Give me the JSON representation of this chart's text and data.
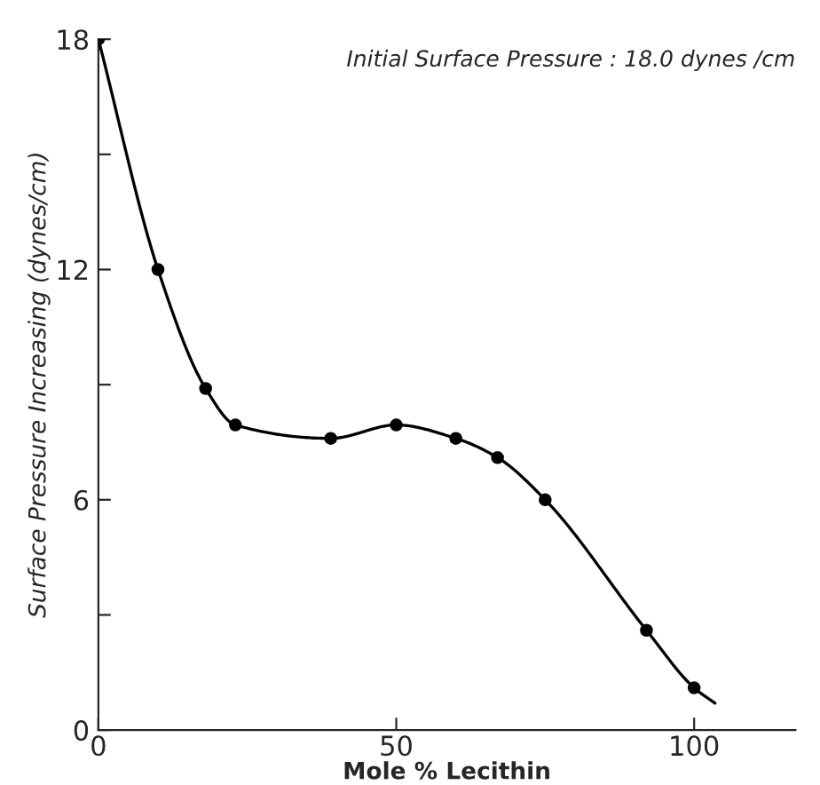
{
  "chart_data": {
    "type": "scatter",
    "xlabel": "Mole % Lecithin",
    "ylabel": "Surface Pressure Increasing (dynes/cm)",
    "annotations": [
      "Initial Surface Pressure : 18.0 dynes /cm"
    ],
    "series": [
      {
        "color": "#000000",
        "marker": "circle",
        "x": [
          0,
          10,
          18,
          23,
          39,
          50,
          60,
          67,
          75,
          92,
          100
        ],
        "values": [
          18,
          12,
          8.9,
          7.95,
          7.6,
          7.95,
          7.6,
          7.1,
          6.0,
          2.6,
          1.1
        ]
      },
      {
        "type": "line",
        "color": "#000000",
        "line_style": "solid",
        "x": [
          0,
          10,
          18,
          23,
          39,
          50,
          60,
          67,
          75,
          92,
          100,
          103.5
        ],
        "values": [
          18,
          12,
          8.9,
          7.95,
          7.6,
          7.95,
          7.6,
          7.1,
          6.0,
          2.6,
          1.1,
          0.7
        ]
      }
    ],
    "xlim": [
      0,
      117
    ],
    "xticks": [
      0,
      50,
      100
    ],
    "ylim": [
      0,
      18
    ],
    "yticks": [
      0,
      {
        "value": 3,
        "label": null
      },
      6,
      {
        "value": 9,
        "label": null
      },
      12,
      {
        "value": 15,
        "label": null
      },
      18
    ],
    "grid": false,
    "legend": false
  }
}
